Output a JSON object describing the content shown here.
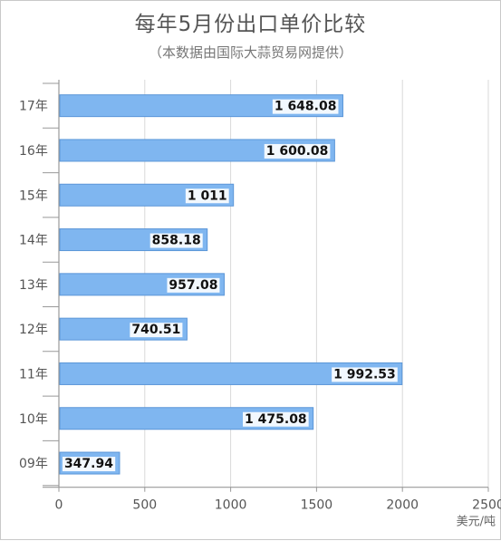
{
  "title": "每年5月份出口单价比较",
  "subtitle": "（本数据由国际大蒜贸易网提供）",
  "chart_data": {
    "type": "bar",
    "orientation": "horizontal",
    "title": "每年5月份出口单价比较",
    "subtitle": "（本数据由国际大蒜贸易网提供）",
    "categories": [
      "17年",
      "16年",
      "15年",
      "14年",
      "13年",
      "12年",
      "11年",
      "10年",
      "09年"
    ],
    "values": [
      1648.08,
      1600.08,
      1011,
      858.18,
      957.08,
      740.51,
      1992.53,
      1475.08,
      347.94
    ],
    "value_labels": [
      "1 648.08",
      "1 600.08",
      "1 011",
      "858.18",
      "957.08",
      "740.51",
      "1 992.53",
      "1 475.08",
      "347.94"
    ],
    "xticks": [
      0,
      500,
      1000,
      1500,
      2000,
      2500
    ],
    "xlim": [
      0,
      2500
    ],
    "xlabel": "美元/吨",
    "ylabel": "",
    "grid": true,
    "bar_color": "#7fb6f0",
    "bar_border_color": "#5b96d8"
  }
}
